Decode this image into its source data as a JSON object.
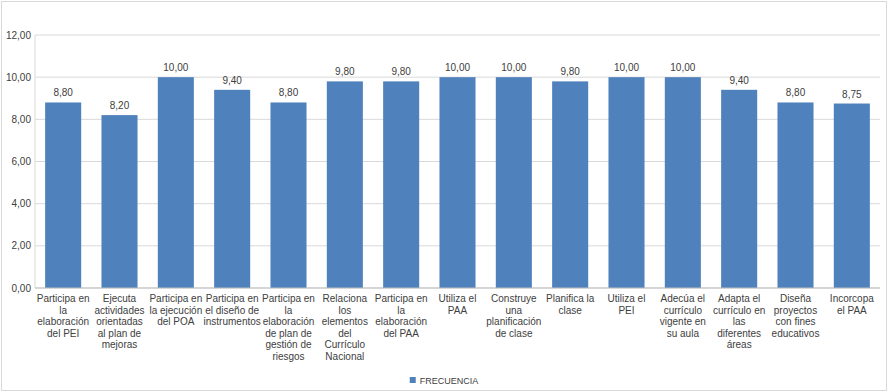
{
  "chart_data": {
    "type": "bar",
    "categories": [
      "Participa en la elaboración del PEI",
      "Ejecuta actividades orientadas al plan de mejoras",
      "Participa en la ejecución del POA",
      "Participa en el diseño de instrumentos",
      "Participa en la elaboración de plan de gestión de riesgos",
      "Relaciona los elementos del Currículo Nacional",
      "Participa en la elaboración del PAA",
      "Utiliza el PAA",
      "Construye una planificación de clase",
      "Planifica la clase",
      "Utiliza el PEI",
      "Adecúa el currículo vigente en su aula",
      "Adapta el currículo en las diferentes áreas",
      "Diseña proyectos con fines educativos",
      "Incorcopa el PAA"
    ],
    "series": [
      {
        "name": "FRECUENCIA",
        "color": "#4f81bd",
        "values": [
          8.8,
          8.2,
          10,
          9.4,
          8.8,
          9.8,
          9.8,
          10,
          10,
          9.8,
          10,
          10,
          9.4,
          8.8,
          8.75
        ],
        "value_labels": [
          "8,80",
          "8,20",
          "10,00",
          "9,40",
          "8,80",
          "9,80",
          "9,80",
          "10,00",
          "10,00",
          "9,80",
          "10,00",
          "10,00",
          "9,40",
          "8,80",
          "8,75"
        ]
      }
    ],
    "ylim": [
      0,
      12
    ],
    "yticks": [
      {
        "value": 0,
        "label": "0,00"
      },
      {
        "value": 2,
        "label": "2,00"
      },
      {
        "value": 4,
        "label": "4,00"
      },
      {
        "value": 6,
        "label": "6,00"
      },
      {
        "value": 8,
        "label": "8,00"
      },
      {
        "value": 10,
        "label": "10,00"
      },
      {
        "value": 12,
        "label": "12,00"
      }
    ],
    "grid": true,
    "legend": "bottom",
    "data_labels": true
  }
}
